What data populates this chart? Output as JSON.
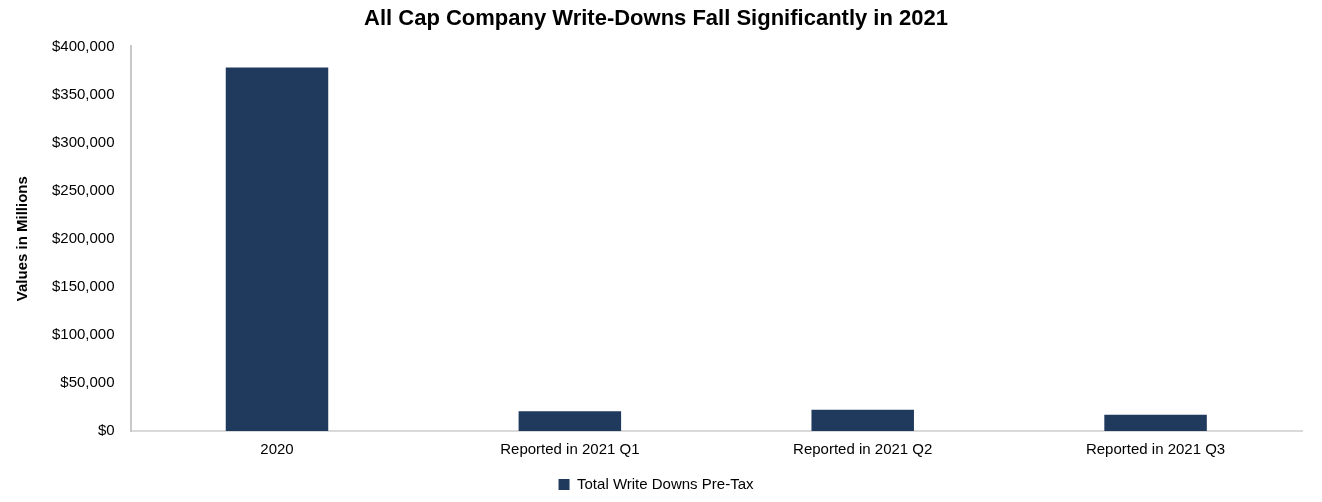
{
  "chart_data": {
    "type": "bar",
    "title": "All Cap Company Write-Downs Fall Significantly in 2021",
    "ylabel": "Values in Millions",
    "categories": [
      "2020",
      "Reported in 2021 Q1",
      "Reported in 2021 Q2",
      "Reported in 2021 Q3"
    ],
    "series": [
      {
        "name": "Total Write Downs Pre-Tax",
        "color": "#203a5e",
        "values": [
          378000,
          20500,
          22000,
          17000
        ]
      }
    ],
    "ylim": [
      0,
      400000
    ],
    "yticks": [
      {
        "value": 0,
        "label": "$0"
      },
      {
        "value": 50000,
        "label": "$50,000"
      },
      {
        "value": 100000,
        "label": "$100,000"
      },
      {
        "value": 150000,
        "label": "$150,000"
      },
      {
        "value": 200000,
        "label": "$200,000"
      },
      {
        "value": 250000,
        "label": "$250,000"
      },
      {
        "value": 300000,
        "label": "$300,000"
      },
      {
        "value": 350000,
        "label": "$350,000"
      },
      {
        "value": 400000,
        "label": "$400,000"
      }
    ],
    "grid": false,
    "legend": "bottom"
  }
}
